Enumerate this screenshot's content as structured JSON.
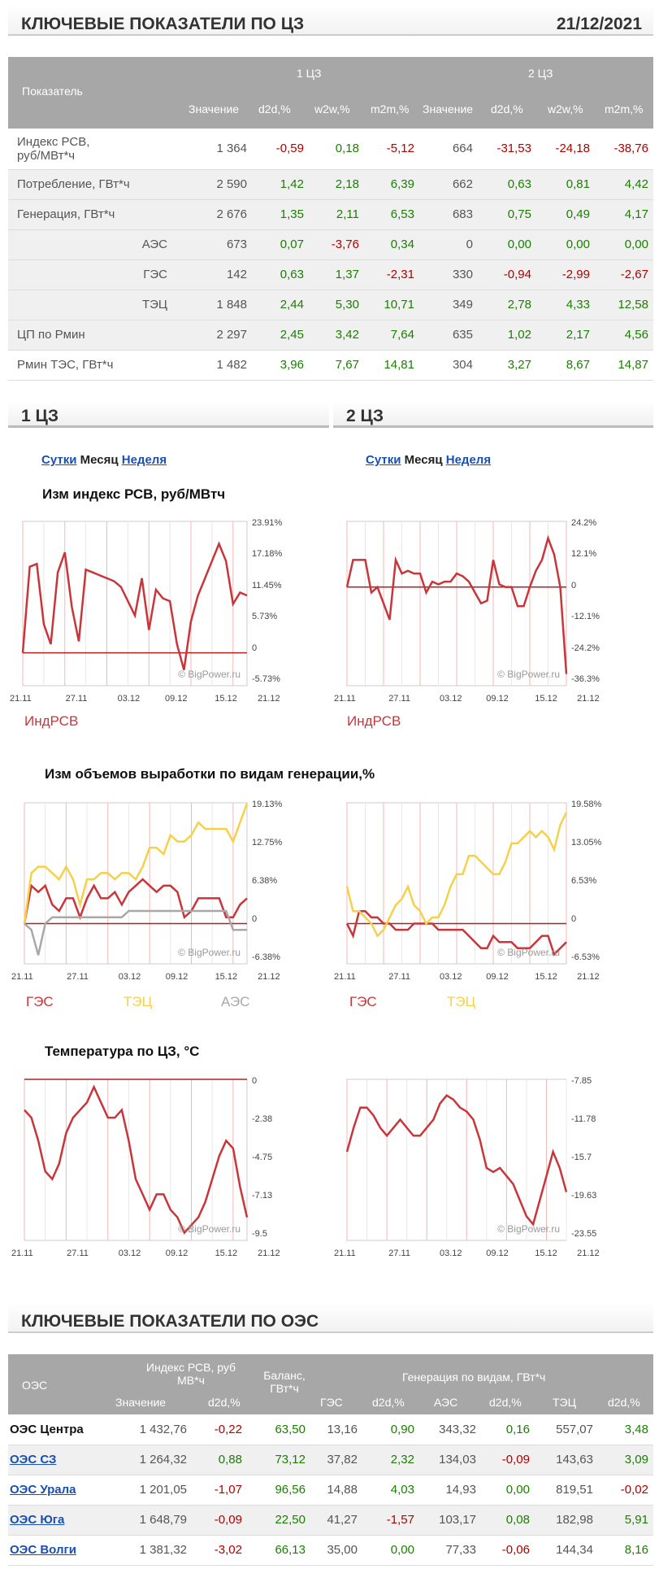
{
  "header": {
    "title": "КЛЮЧЕВЫЕ ПОКАЗАТЕЛИ ПО ЦЗ",
    "date": "21/12/2021"
  },
  "cz_table": {
    "col_indicator": "Показатель",
    "group1": "1 ЦЗ",
    "group2": "2 ЦЗ",
    "sub": [
      "Значение",
      "d2d,%",
      "w2w,%",
      "m2m,%",
      "Значение",
      "d2d,%",
      "w2w,%",
      "m2m,%"
    ],
    "rows": [
      {
        "label": "Индекс РСВ,\nруб/МВт*ч",
        "indent": false,
        "v": [
          "1 364",
          "-0,59",
          "0,18",
          "-5,12",
          "664",
          "-31,53",
          "-24,18",
          "-38,76"
        ]
      },
      {
        "label": "Потребление, ГВт*ч",
        "indent": false,
        "v": [
          "2 590",
          "1,42",
          "2,18",
          "6,39",
          "662",
          "0,63",
          "0,81",
          "4,42"
        ]
      },
      {
        "label": "Генерация, ГВт*ч",
        "indent": false,
        "v": [
          "2 676",
          "1,35",
          "2,11",
          "6,53",
          "683",
          "0,75",
          "0,49",
          "4,17"
        ]
      },
      {
        "label": "АЭС",
        "indent": true,
        "v": [
          "673",
          "0,07",
          "-3,76",
          "0,34",
          "0",
          "0,00",
          "0,00",
          "0,00"
        ]
      },
      {
        "label": "ГЭС",
        "indent": true,
        "v": [
          "142",
          "0,63",
          "1,37",
          "-2,31",
          "330",
          "-0,94",
          "-2,99",
          "-2,67"
        ]
      },
      {
        "label": "ТЭЦ",
        "indent": true,
        "v": [
          "1 848",
          "2,44",
          "5,30",
          "10,71",
          "349",
          "2,78",
          "4,33",
          "12,58"
        ]
      },
      {
        "label": "ЦП по Рмин",
        "indent": false,
        "v": [
          "2 297",
          "2,45",
          "3,42",
          "7,64",
          "635",
          "1,02",
          "2,17",
          "4,56"
        ]
      },
      {
        "label": "Рмин ТЭС, ГВт*ч",
        "indent": false,
        "v": [
          "1 482",
          "3,96",
          "7,67",
          "14,81",
          "304",
          "3,27",
          "8,67",
          "14,87"
        ]
      }
    ]
  },
  "sections": {
    "left": "1 ЦЗ",
    "right": "2 ЦЗ"
  },
  "period_links": {
    "day": "Сутки",
    "month": "Месяц",
    "week": "Неделя"
  },
  "chart_titles": {
    "rsv": "Изм индекс РСВ, руб/МВтч",
    "gen": "Изм объемов выработки по видам генерации,%",
    "temp": "Температура по ЦЗ, °C"
  },
  "watermark": "© BigPower.ru",
  "x_ticks": [
    "21.11",
    "27.11",
    "03.12",
    "09.12",
    "15.12",
    "21.12"
  ],
  "colors": {
    "red": "#c8353a",
    "yellow": "#f5d14a",
    "gray": "#a8a8a8",
    "accent_text_red": "#b00000",
    "accent_text_green": "#1a8000"
  },
  "legends": {
    "rsv_left": "ИндРСВ",
    "rsv_right": "ИндРСВ",
    "gen_left": [
      "ГЭС",
      "ТЭЦ",
      "АЭС"
    ],
    "gen_right": [
      "ГЭС",
      "ТЭЦ"
    ]
  },
  "chart_data": [
    {
      "type": "line",
      "id": "rsv1",
      "y_ticks": [
        "23.91%",
        "17.18%",
        "11.45%",
        "5.73%",
        "0",
        "-5.73%"
      ],
      "ylim": [
        -5.73,
        22.91
      ],
      "series": [
        {
          "name": "ИндРСВ",
          "values": [
            0,
            15,
            15.5,
            5,
            1.5,
            14,
            17.5,
            8,
            2,
            14.5,
            14,
            13.5,
            13,
            12.5,
            11.5,
            9,
            6.5,
            13,
            4,
            11,
            9.5,
            9,
            1.5,
            -3,
            5.5,
            10,
            13,
            16,
            19,
            16,
            8.5,
            10.5,
            10
          ]
        }
      ]
    },
    {
      "type": "line",
      "id": "rsv2",
      "y_ticks": [
        "24.2%",
        "12.1%",
        "0",
        "-12.1%",
        "-24.2%",
        "-36.3%"
      ],
      "ylim": [
        -36.3,
        24.2
      ],
      "series": [
        {
          "name": "ИндРСВ",
          "values": [
            0,
            10,
            10,
            10,
            -2,
            0,
            -6,
            -12,
            10,
            5,
            6,
            5,
            5,
            -2,
            2,
            1,
            2,
            2,
            5,
            4,
            2,
            -2,
            -6,
            -5,
            10,
            1,
            0,
            0,
            -7,
            -7,
            0,
            6,
            10,
            18,
            12,
            0,
            -32
          ]
        }
      ]
    },
    {
      "type": "line",
      "id": "gen1",
      "y_ticks": [
        "19.13%",
        "12.75%",
        "6.38%",
        "0",
        "-6.38%"
      ],
      "ylim": [
        -6.38,
        19.13
      ],
      "series": [
        {
          "name": "ГЭС",
          "values": [
            0,
            6,
            5,
            6,
            3,
            2,
            4,
            4,
            1,
            4,
            6,
            4,
            4,
            5,
            3,
            5,
            6,
            7,
            6,
            5,
            6,
            6,
            5,
            1,
            2,
            4,
            4,
            4,
            4,
            1,
            1,
            3,
            4
          ]
        },
        {
          "name": "ТЭЦ",
          "values": [
            0,
            8,
            9,
            9,
            8,
            7,
            9,
            7,
            3,
            7,
            7,
            8,
            8,
            7,
            8,
            8,
            7,
            9,
            12,
            12,
            11,
            14,
            13,
            13,
            14,
            16,
            15,
            15,
            15,
            15,
            13,
            16,
            19
          ]
        },
        {
          "name": "АЭС",
          "values": [
            0,
            -1,
            -5,
            0,
            1,
            1,
            1,
            1,
            1,
            1,
            1,
            1,
            1,
            1,
            1,
            2,
            2,
            2,
            2,
            2,
            2,
            2,
            2,
            2,
            2,
            2,
            2,
            2,
            2,
            2,
            -1,
            -1,
            -1
          ]
        }
      ]
    },
    {
      "type": "line",
      "id": "gen2",
      "y_ticks": [
        "19.58%",
        "13.05%",
        "6.53%",
        "0",
        "-6.53%"
      ],
      "ylim": [
        -6.53,
        19.58
      ],
      "series": [
        {
          "name": "ГЭС",
          "values": [
            0,
            -2,
            2,
            2,
            1,
            1,
            0,
            0,
            -1,
            -1,
            -1,
            0,
            0,
            0,
            0,
            -1,
            -1,
            -1,
            -1,
            -1,
            -2,
            -3,
            -4,
            -4,
            -2,
            -3,
            -3,
            -3,
            -4,
            -4,
            -4,
            -3,
            -2,
            -2,
            -5,
            -4,
            -3
          ]
        },
        {
          "name": "ТЭЦ",
          "values": [
            6,
            2,
            2,
            1,
            0,
            -2,
            -1,
            1,
            3,
            4,
            6,
            3,
            2,
            0,
            1,
            1,
            3,
            6,
            8,
            8,
            11,
            11,
            10,
            9,
            8,
            8,
            10,
            13,
            13,
            14,
            15,
            14,
            15,
            14,
            12,
            16,
            18
          ]
        }
      ]
    },
    {
      "type": "line",
      "id": "temp1",
      "y_ticks": [
        "0",
        "-2.38",
        "-4.75",
        "-7.13",
        "-9.5"
      ],
      "ylim": [
        -10.5,
        0
      ],
      "series": [
        {
          "name": "Температура",
          "values": [
            -2,
            -2.5,
            -4,
            -6,
            -6.5,
            -5.5,
            -3.5,
            -2.5,
            -2,
            -1.5,
            -0.5,
            -1.5,
            -2.5,
            -2.5,
            -2,
            -4,
            -6.5,
            -7.5,
            -8.5,
            -7.5,
            -7.5,
            -8.5,
            -9,
            -10,
            -9.5,
            -9,
            -8,
            -6.5,
            -5,
            -4,
            -4.5,
            -7,
            -9
          ]
        }
      ]
    },
    {
      "type": "line",
      "id": "temp2",
      "y_ticks": [
        "-7.85",
        "-11.78",
        "-15.7",
        "-19.63",
        "-23.55"
      ],
      "ylim": [
        -25,
        -5
      ],
      "series": [
        {
          "name": "Температура",
          "values": [
            -14,
            -11,
            -8.5,
            -8.5,
            -9.5,
            -11,
            -12,
            -11,
            -10,
            -11,
            -12,
            -12,
            -11,
            -10,
            -8,
            -7,
            -7.5,
            -8.5,
            -9,
            -10,
            -12.5,
            -16,
            -16.5,
            -16,
            -17,
            -18,
            -20,
            -22,
            -23,
            -20,
            -17,
            -14,
            -16,
            -19
          ]
        }
      ]
    }
  ],
  "oes_header": {
    "title": "КЛЮЧЕВЫЕ ПОКАЗАТЕЛИ ПО ОЭС"
  },
  "oes_table": {
    "col_oes": "ОЭС",
    "col_rsv": "Индекс РСВ, руб\nМВ*ч",
    "col_balance": "Баланс,\nГВт*ч",
    "col_gen": "Генерация по видам, ГВт*ч",
    "sub": [
      "Значение",
      "d2d,%",
      "ГЭС",
      "d2d,%",
      "АЭС",
      "d2d,%",
      "ТЭЦ",
      "d2d,%"
    ],
    "rows": [
      {
        "name": "ОЭС Центра",
        "link": false,
        "v": [
          "1 432,76",
          "-0,22",
          "63,50",
          "13,16",
          "0,90",
          "343,32",
          "0,16",
          "557,07",
          "3,48"
        ]
      },
      {
        "name": "ОЭС СЗ",
        "link": true,
        "v": [
          "1 264,32",
          "0,88",
          "73,12",
          "37,82",
          "2,32",
          "134,03",
          "-0,09",
          "143,63",
          "3,09"
        ]
      },
      {
        "name": "ОЭС Урала",
        "link": true,
        "v": [
          "1 201,05",
          "-1,07",
          "96,56",
          "14,88",
          "4,03",
          "14,93",
          "0,00",
          "819,51",
          "-0,02"
        ]
      },
      {
        "name": "ОЭС Юга",
        "link": true,
        "v": [
          "1 648,79",
          "-0,09",
          "22,50",
          "41,27",
          "-1,57",
          "103,17",
          "0,08",
          "182,98",
          "5,91"
        ]
      },
      {
        "name": "ОЭС Волги",
        "link": true,
        "v": [
          "1 381,32",
          "-3,02",
          "66,13",
          "35,00",
          "0,00",
          "77,33",
          "-0,06",
          "144,34",
          "8,16"
        ]
      }
    ]
  }
}
